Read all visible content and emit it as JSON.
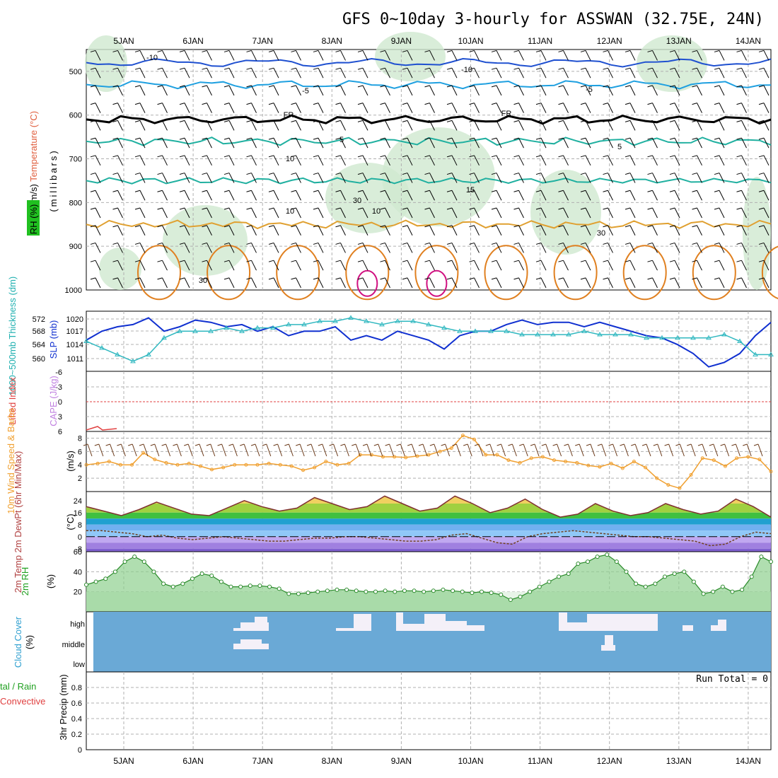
{
  "title": "GFS 0~10day 3-hourly for ASSWAN (32.75E, 24N)",
  "colors": {
    "grid": "#b0b0b0",
    "temp_warm": "#e08020",
    "temp_hot": "#d01080",
    "temp_cold": "#1f50d0",
    "temp_cool": "#1fa0e0",
    "temp_mid": "#20b0a0",
    "rh_shade": "#cfe8cf",
    "slp": "#1030d0",
    "thickness": "#30b8c0",
    "wind_speed": "#f0a030",
    "barb": "#6b3a1a",
    "cloud_bg": "#6aa9d6",
    "cloud": "#f4f0f8",
    "dewpoint": "#704020",
    "rh_line": "#2a8a2a"
  },
  "chart_data": [
    {
      "type": "contour",
      "panel": "upper-air",
      "ylabel_parts": [
        "Wind (m/s)",
        "Temperature (°C)",
        "RH (%)"
      ],
      "ylabel2": "(millibars)",
      "x": [
        "5JAN",
        "6JAN",
        "7JAN",
        "8JAN",
        "9JAN",
        "10JAN",
        "11JAN",
        "12JAN",
        "13JAN",
        "14JAN"
      ],
      "y_ticks": [
        "500",
        "600",
        "700",
        "800",
        "900",
        "1000"
      ],
      "ylim": [
        1000,
        450
      ],
      "contour_labels": [
        {
          "text": "-10",
          "level": -10
        },
        {
          "text": "-10",
          "level": -10
        },
        {
          "text": "-5",
          "level": -5
        },
        {
          "text": "-5",
          "level": -5
        },
        {
          "text": "FR",
          "level": 0
        },
        {
          "text": "FR",
          "level": 0
        },
        {
          "text": "5",
          "level": 5
        },
        {
          "text": "5",
          "level": 5
        },
        {
          "text": "10",
          "level": 10
        },
        {
          "text": "15",
          "level": 15
        },
        {
          "text": "10",
          "level": 10
        },
        {
          "text": "10",
          "level": 10
        },
        {
          "text": "30",
          "level": 30
        },
        {
          "text": "30",
          "level": 30
        },
        {
          "text": "30",
          "level": 30
        }
      ]
    },
    {
      "type": "line",
      "panel": "pressure",
      "ylabel_left": "1000~500mb Thickness (dm)",
      "ylabel_right": "SLP (mb)",
      "y_ticks_left": [
        "572",
        "568",
        "564",
        "560"
      ],
      "y_ticks_right": [
        "1020",
        "1017",
        "1014",
        "1011"
      ],
      "series": [
        {
          "name": "SLP (mb)",
          "values": [
            1015,
            1017,
            1018,
            1018.5,
            1020,
            1017,
            1018,
            1019.5,
            1019,
            1018,
            1018.5,
            1017,
            1018,
            1016,
            1017,
            1017,
            1018,
            1015,
            1016,
            1015,
            1017,
            1016,
            1015,
            1013,
            1016,
            1017,
            1017,
            1018.5,
            1019.5,
            1018.5,
            1019,
            1019,
            1018,
            1019,
            1018,
            1017,
            1016,
            1015.5,
            1014,
            1012,
            1009,
            1010,
            1012,
            1016,
            1019
          ]
        },
        {
          "name": "Thickness (dm)",
          "values": [
            565,
            563,
            561,
            559,
            561,
            566,
            568,
            568,
            568,
            569,
            568,
            569,
            569,
            570,
            570,
            571,
            571,
            572,
            571,
            570,
            571,
            571,
            570,
            569,
            568,
            568,
            568,
            568,
            567,
            567,
            567,
            567,
            568,
            567,
            567,
            567,
            566,
            566,
            566,
            566,
            566,
            567,
            565,
            561,
            561
          ]
        }
      ]
    },
    {
      "type": "line",
      "panel": "stability",
      "ylabel_left": "Lifted Index",
      "ylabel_right": "CAPE (J/kg)",
      "y_ticks": [
        "-6",
        "-3",
        "0",
        "3",
        "6"
      ],
      "ylim": [
        -6,
        6
      ],
      "series": [
        {
          "name": "Lifted Index",
          "values": [
            6,
            5.8,
            6,
            6,
            6
          ]
        }
      ]
    },
    {
      "type": "line",
      "panel": "wind10m",
      "ylabel_left": "10m Wind Speed & Barbs",
      "ylabel_unit": "(m/s)",
      "y_ticks": [
        "8",
        "6",
        "4",
        "2"
      ],
      "ylim": [
        0,
        9
      ],
      "series": [
        {
          "name": "10m Wind Speed",
          "values": [
            4,
            4.2,
            4.5,
            4,
            4,
            5.8,
            4.8,
            4.3,
            4,
            4.2,
            3.8,
            3.3,
            3.6,
            4,
            4,
            4,
            4.2,
            4,
            3.8,
            3.2,
            3.6,
            4.5,
            4,
            4.2,
            5.5,
            5.5,
            5.2,
            5.2,
            5.1,
            5.3,
            5.5,
            6,
            6.5,
            8.4,
            7.8,
            5.5,
            5.5,
            4.7,
            4.3,
            5,
            5.2,
            4.7,
            4.5,
            4.3,
            3.9,
            3.7,
            4.2,
            3.5,
            4.5,
            3.6,
            2,
            1,
            0.5,
            2.5,
            5,
            4.7,
            3.8,
            5,
            5.2,
            4.8,
            3
          ]
        }
      ]
    },
    {
      "type": "line",
      "panel": "temp2m",
      "ylabel_left": "2m Temp 2m DewPt (6hr Min/Max)",
      "ylabel_unit": "(°C)",
      "y_ticks": [
        "24",
        "16",
        "8",
        "0",
        "-8"
      ],
      "ylim": [
        -10,
        30
      ],
      "series": [
        {
          "name": "2m Temp",
          "values": [
            20,
            17,
            14,
            18,
            23,
            19,
            15,
            14,
            19,
            24,
            20,
            17,
            19,
            26,
            22,
            18,
            20,
            27,
            22,
            17,
            19,
            27,
            22,
            16,
            19,
            25,
            18,
            13,
            15,
            22,
            17,
            14,
            16,
            22,
            18,
            15,
            17,
            25,
            20,
            13
          ]
        },
        {
          "name": "2m DewPt",
          "values": [
            4,
            4,
            3,
            2,
            0,
            1,
            -1,
            -2,
            -1,
            0,
            -1,
            -2,
            -3,
            -3,
            -2,
            -1,
            -1,
            0,
            0,
            -1,
            -2,
            -3,
            -3,
            -2,
            1,
            2,
            -1,
            -4,
            -5,
            0,
            2,
            3,
            4,
            3,
            2,
            1,
            0,
            0,
            -1,
            -2,
            -3,
            -6,
            -5,
            0,
            3,
            2
          ]
        }
      ]
    },
    {
      "type": "area",
      "panel": "rh2m",
      "ylabel_left": "2m RH",
      "ylabel_unit": "(%)",
      "y_ticks": [
        "60",
        "40",
        "20"
      ],
      "ylim": [
        0,
        60
      ],
      "series": [
        {
          "name": "2m RH",
          "values": [
            27,
            30,
            33,
            40,
            50,
            55,
            50,
            40,
            28,
            25,
            28,
            33,
            38,
            36,
            30,
            25,
            25,
            26,
            26,
            25,
            23,
            18,
            18,
            19,
            20,
            21,
            22,
            22,
            21,
            20,
            20,
            21,
            20,
            21,
            21,
            20,
            21,
            22,
            21,
            20,
            19,
            20,
            19,
            17,
            12,
            15,
            20,
            25,
            30,
            35,
            38,
            48,
            50,
            55,
            57,
            50,
            40,
            28,
            25,
            28,
            35,
            38,
            40,
            30,
            18,
            20,
            25,
            20,
            22,
            35,
            55,
            50
          ]
        }
      ]
    },
    {
      "type": "heatmap",
      "panel": "cloud",
      "ylabel_left": "Cloud Cover",
      "ylabel_unit": "(%)",
      "levels": [
        "high",
        "middle",
        "low"
      ]
    },
    {
      "type": "bar",
      "panel": "precip",
      "ylabel_left": "Total / Rain Convective",
      "ylabel_parts": [
        "tal / Rain",
        "Convective"
      ],
      "ylabel_unit": "3hr Precip (mm)",
      "y_ticks": [
        "0.8",
        "0.6",
        "0.4",
        "0.2",
        "0"
      ],
      "ylim": [
        0,
        1
      ],
      "annotation": "Run Total = 0"
    }
  ]
}
